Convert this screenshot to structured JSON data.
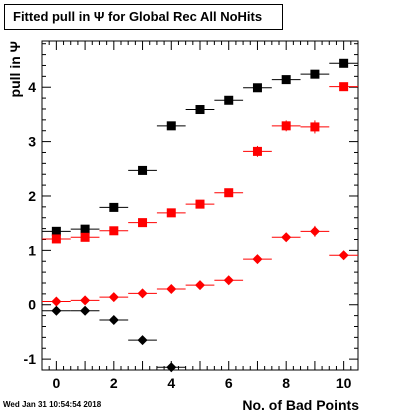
{
  "title": "Fitted pull in  Ψ  for Global Rec All NoHits",
  "timestamp": "Wed Jan 31 10:54:54 2018",
  "chart_data": {
    "type": "scatter",
    "title": "Fitted pull in  Ψ  for Global Rec All NoHits",
    "xlabel": "No. of Bad Points",
    "ylabel": "pull in  Ψ",
    "xlim": [
      -0.5,
      10.5
    ],
    "ylim": [
      -1.2,
      4.85
    ],
    "x_ticks": [
      "0",
      "2",
      "4",
      "6",
      "8",
      "10"
    ],
    "y_ticks": [
      "-1",
      "0",
      "1",
      "2",
      "3",
      "4"
    ],
    "x_tick_values": [
      0,
      2,
      4,
      6,
      8,
      10
    ],
    "y_tick_values": [
      -1,
      0,
      1,
      2,
      3,
      4
    ],
    "grid": false,
    "legend": "none",
    "series": [
      {
        "color": "#000000",
        "marker": "square",
        "x": [
          0,
          1,
          2,
          3,
          4,
          5,
          6,
          7,
          8,
          9,
          10
        ],
        "y": [
          1.35,
          1.39,
          1.79,
          2.47,
          3.29,
          3.59,
          3.76,
          3.99,
          4.14,
          4.24,
          4.44
        ],
        "yerr": [
          0.03,
          0.03,
          0.04,
          0.04,
          0.05,
          0.05,
          0.05,
          0.05,
          0.06,
          0.07,
          0.07
        ]
      },
      {
        "color": "#ff0000",
        "marker": "square",
        "x": [
          0,
          1,
          2,
          3,
          4,
          5,
          6,
          7,
          8,
          9,
          10
        ],
        "y": [
          1.21,
          1.24,
          1.36,
          1.51,
          1.69,
          1.85,
          2.06,
          2.82,
          3.29,
          3.27,
          4.01
        ],
        "yerr": [
          0.03,
          0.03,
          0.03,
          0.04,
          0.04,
          0.05,
          0.05,
          0.1,
          0.1,
          0.12,
          0.07
        ]
      },
      {
        "color": "#ff0000",
        "marker": "diamond",
        "x": [
          0,
          1,
          2,
          3,
          4,
          5,
          6,
          7,
          8,
          9,
          10
        ],
        "y": [
          0.06,
          0.08,
          0.14,
          0.21,
          0.29,
          0.36,
          0.45,
          0.84,
          1.24,
          1.35,
          0.91
        ],
        "yerr": [
          0.02,
          0.02,
          0.02,
          0.03,
          0.03,
          0.04,
          0.05,
          0.05,
          0.07,
          0.1,
          0.05
        ]
      },
      {
        "color": "#000000",
        "marker": "diamond",
        "x": [
          0,
          1,
          2,
          3,
          4
        ],
        "y": [
          -0.11,
          -0.11,
          -0.28,
          -0.65,
          -1.15
        ],
        "yerr": [
          0.02,
          0.02,
          0.03,
          0.04,
          0.05
        ]
      }
    ]
  }
}
